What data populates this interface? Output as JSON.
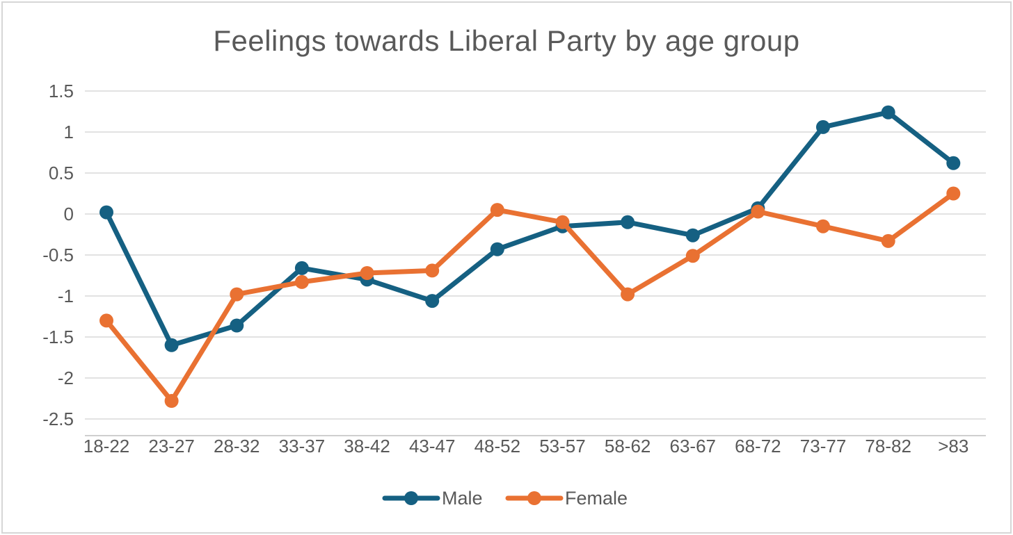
{
  "colors": {
    "background": "#FFFFFF",
    "border": "#D6D6D6",
    "gridline": "#D9D9D9",
    "axis_line": "#BFBFBF",
    "text": "#595959",
    "male": "#156082",
    "female": "#E97132"
  },
  "chart_data": {
    "type": "line",
    "title": "Feelings towards Liberal Party by age group",
    "categories": [
      "18-22",
      "23-27",
      "28-32",
      "33-37",
      "38-42",
      "43-47",
      "48-52",
      "53-57",
      "58-62",
      "63-67",
      "68-72",
      "73-77",
      "78-82",
      ">83"
    ],
    "series": [
      {
        "name": "Male",
        "color": "#156082",
        "values": [
          0.02,
          -1.6,
          -1.36,
          -0.66,
          -0.8,
          -1.06,
          -0.43,
          -0.15,
          -0.1,
          -0.26,
          0.07,
          1.06,
          1.24,
          0.62
        ]
      },
      {
        "name": "Female",
        "color": "#E97132",
        "values": [
          -1.3,
          -2.28,
          -0.98,
          -0.83,
          -0.72,
          -0.69,
          0.05,
          -0.1,
          -0.98,
          -0.51,
          0.03,
          -0.15,
          -0.33,
          0.25
        ]
      }
    ],
    "y_ticks": [
      {
        "value": 1.5,
        "label": "1.5"
      },
      {
        "value": 1,
        "label": "1"
      },
      {
        "value": 0.5,
        "label": "0.5"
      },
      {
        "value": 0,
        "label": "0"
      },
      {
        "value": -0.5,
        "label": "-0.5"
      },
      {
        "value": -1,
        "label": "-1"
      },
      {
        "value": -1.5,
        "label": "-1.5"
      },
      {
        "value": -2,
        "label": "-2"
      },
      {
        "value": -2.5,
        "label": "-2.5"
      }
    ],
    "ylim": [
      -2.7,
      1.6
    ],
    "xlabel": "",
    "ylabel": "",
    "grid": true,
    "legend_position": "bottom"
  }
}
